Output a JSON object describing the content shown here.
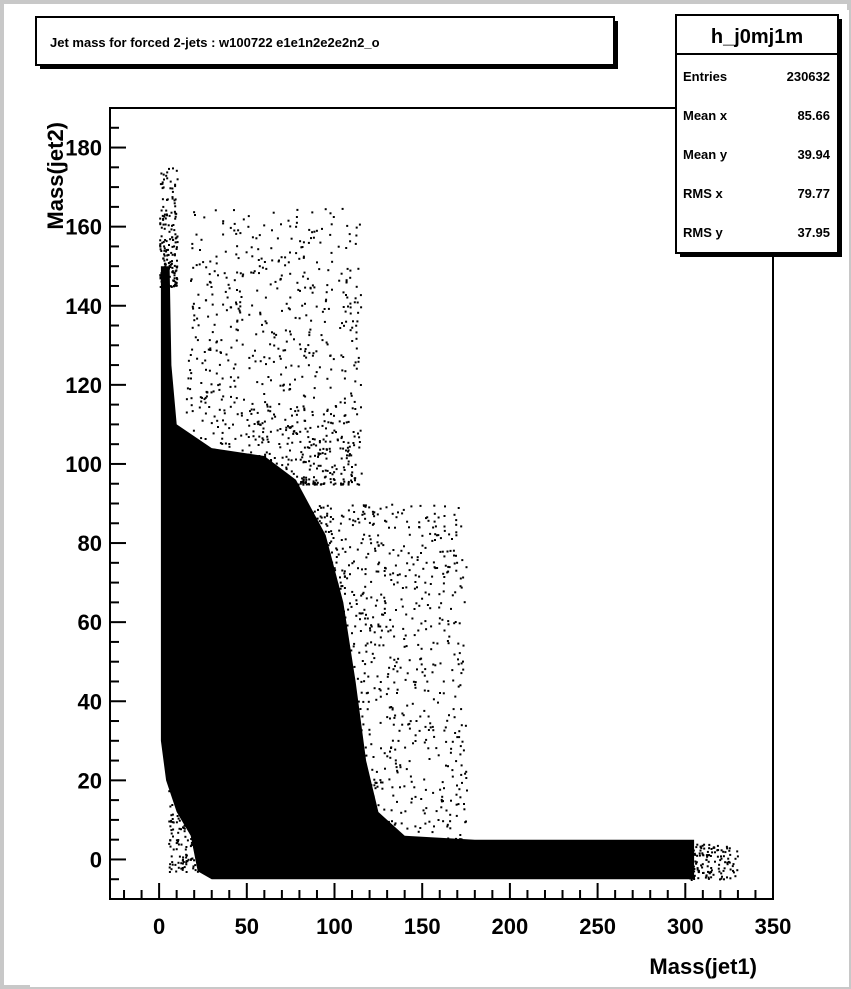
{
  "colors": {
    "page_border": "#c8c8c8",
    "pad_background": "#ffffff",
    "ink": "#000000"
  },
  "title_box": {
    "text": "Jet mass for forced 2-jets : w100722 e1e1n2e2e2n2_o"
  },
  "stats_box": {
    "name": "h_j0mj1m",
    "rows": [
      {
        "label": "Entries",
        "value": "230632"
      },
      {
        "label": "Mean x",
        "value": "85.66"
      },
      {
        "label": "Mean y",
        "value": "39.94"
      },
      {
        "label": "RMS x",
        "value": "79.77"
      },
      {
        "label": "RMS y",
        "value": "37.95"
      }
    ]
  },
  "chart_data": {
    "type": "scatter",
    "title": "Jet mass for forced 2-jets : w100722 e1e1n2e2e2n2_o",
    "xlabel": "Mass(jet1)",
    "ylabel": "Mass(jet2)",
    "xlim": [
      -28,
      350
    ],
    "ylim": [
      -10,
      190
    ],
    "x_ticks": [
      0,
      50,
      100,
      150,
      200,
      250,
      300,
      350
    ],
    "y_ticks": [
      0,
      20,
      40,
      60,
      80,
      100,
      120,
      140,
      160,
      180
    ],
    "x_tick_labels": [
      "0",
      "50",
      "100",
      "150",
      "200",
      "250",
      "300",
      "350"
    ],
    "y_tick_labels": [
      "0",
      "20",
      "40",
      "60",
      "80",
      "100",
      "120",
      "140",
      "160",
      "180"
    ],
    "grid": false,
    "legend": "none",
    "stats": {
      "Entries": 230632,
      "Mean x": 85.66,
      "Mean y": 39.94,
      "RMS x": 79.77,
      "RMS y": 37.95
    },
    "regions": [
      {
        "name": "dense vertical band",
        "x_range": [
          0,
          8
        ],
        "y_range": [
          5,
          150
        ]
      },
      {
        "name": "dense main region",
        "x_range": [
          5,
          100
        ],
        "y_range": [
          10,
          100
        ]
      },
      {
        "name": "dense horizontal band",
        "x_range": [
          10,
          305
        ],
        "y_range": [
          -5,
          4
        ]
      }
    ]
  }
}
